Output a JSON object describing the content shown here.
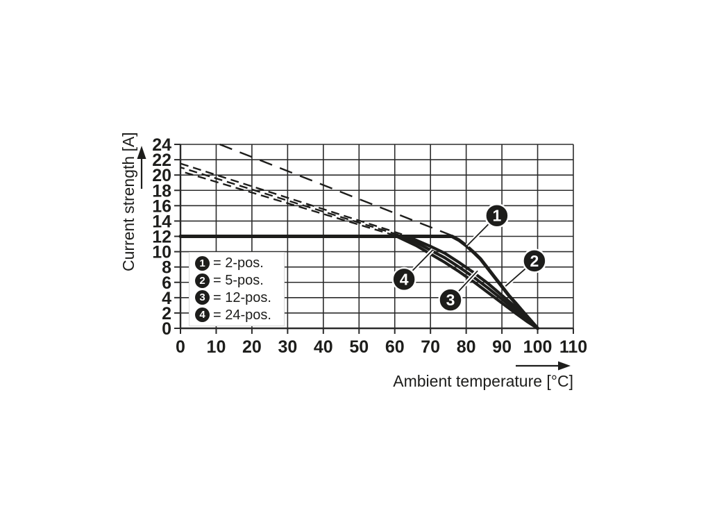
{
  "chart_data": {
    "type": "line",
    "xlabel": "Ambient temperature [°C]",
    "ylabel": "Current strength [A]",
    "xlim": [
      0,
      110
    ],
    "ylim": [
      0,
      24
    ],
    "x_ticks": [
      0,
      10,
      20,
      30,
      40,
      50,
      60,
      70,
      80,
      90,
      100,
      110
    ],
    "y_ticks": [
      0,
      2,
      4,
      6,
      8,
      10,
      12,
      14,
      16,
      18,
      20,
      22,
      24
    ],
    "grid": true,
    "legend_position": "inside-lower-left",
    "series": [
      {
        "name": "2-pos. operating curve",
        "marker": "1",
        "style": "solid",
        "width": 5,
        "points": [
          [
            0,
            12
          ],
          [
            76,
            12
          ],
          [
            78,
            11.5
          ],
          [
            80,
            10.8
          ],
          [
            82,
            9.95
          ],
          [
            84,
            9.05
          ],
          [
            86,
            7.85
          ],
          [
            88,
            6.65
          ],
          [
            90,
            5.45
          ],
          [
            92,
            4.25
          ],
          [
            94,
            3.2
          ],
          [
            96,
            2.1
          ],
          [
            98,
            1.05
          ],
          [
            100,
            0
          ]
        ]
      },
      {
        "name": "5-pos. operating curve",
        "marker": "2",
        "style": "solid",
        "width": 4.2,
        "points": [
          [
            63.5,
            12
          ],
          [
            66,
            11.5
          ],
          [
            70,
            10.7
          ],
          [
            74,
            9.8
          ],
          [
            78,
            8.6
          ],
          [
            82,
            7.3
          ],
          [
            86,
            5.9
          ],
          [
            90,
            4.3
          ],
          [
            94,
            2.7
          ],
          [
            97,
            1.5
          ],
          [
            100,
            0
          ]
        ]
      },
      {
        "name": "12-pos. operating curve",
        "marker": "3",
        "style": "solid",
        "width": 4.2,
        "points": [
          [
            62,
            12
          ],
          [
            66,
            11.2
          ],
          [
            70,
            10.2
          ],
          [
            74,
            9.2
          ],
          [
            78,
            8.0
          ],
          [
            82,
            6.7
          ],
          [
            86,
            5.3
          ],
          [
            90,
            3.8
          ],
          [
            94,
            2.3
          ],
          [
            97,
            1.2
          ],
          [
            100,
            0
          ]
        ]
      },
      {
        "name": "24-pos. operating curve",
        "marker": "4",
        "style": "solid",
        "width": 4.2,
        "points": [
          [
            60.5,
            12
          ],
          [
            66,
            10.8
          ],
          [
            70,
            9.7
          ],
          [
            74,
            8.6
          ],
          [
            78,
            7.4
          ],
          [
            82,
            6.1
          ],
          [
            86,
            4.7
          ],
          [
            90,
            3.3
          ],
          [
            94,
            1.9
          ],
          [
            97,
            0.9
          ],
          [
            100,
            0
          ]
        ]
      },
      {
        "name": "2-pos. derating (dashed)",
        "style": "dashed",
        "width": 2.4,
        "dash": [
          19,
          12
        ],
        "points": [
          [
            11,
            24
          ],
          [
            76,
            12.1
          ]
        ]
      },
      {
        "name": "5-pos. derating (dashed)",
        "style": "dashed",
        "width": 2.4,
        "dash": [
          12,
          7
        ],
        "offset": 0,
        "points": [
          [
            0,
            21.5
          ],
          [
            63.5,
            12.05
          ]
        ]
      },
      {
        "name": "12-pos. derating (dashed)",
        "style": "dashed",
        "width": 2.4,
        "dash": [
          12,
          7
        ],
        "offset": 6,
        "points": [
          [
            0,
            21.0
          ],
          [
            62,
            12.05
          ]
        ]
      },
      {
        "name": "24-pos. derating (dashed)",
        "style": "dashed",
        "width": 2.4,
        "dash": [
          12,
          7
        ],
        "offset": 12,
        "points": [
          [
            0,
            20.5
          ],
          [
            60.5,
            12.05
          ]
        ]
      }
    ],
    "markers": [
      {
        "num": "1",
        "at": [
          88.6,
          14.7
        ],
        "to": [
          80.3,
          10.8
        ]
      },
      {
        "num": "2",
        "at": [
          99.1,
          8.8
        ],
        "to": [
          91.0,
          5.5
        ]
      },
      {
        "num": "3",
        "at": [
          75.6,
          3.7
        ],
        "to": [
          83.2,
          7.5
        ]
      },
      {
        "num": "4",
        "at": [
          62.6,
          6.4
        ],
        "to": [
          70.6,
          10.2
        ]
      }
    ]
  },
  "legend": {
    "items": [
      {
        "num": "1",
        "label": "= 2-pos."
      },
      {
        "num": "2",
        "label": "= 5-pos."
      },
      {
        "num": "3",
        "label": "= 12-pos."
      },
      {
        "num": "4",
        "label": "= 24-pos."
      }
    ]
  },
  "colors": {
    "line": "#1d1d1b",
    "grid": "#2b2b2b",
    "text": "#1d1d1b",
    "badge_bg": "#1d1d1b",
    "badge_text": "#ffffff",
    "background": "#ffffff"
  }
}
